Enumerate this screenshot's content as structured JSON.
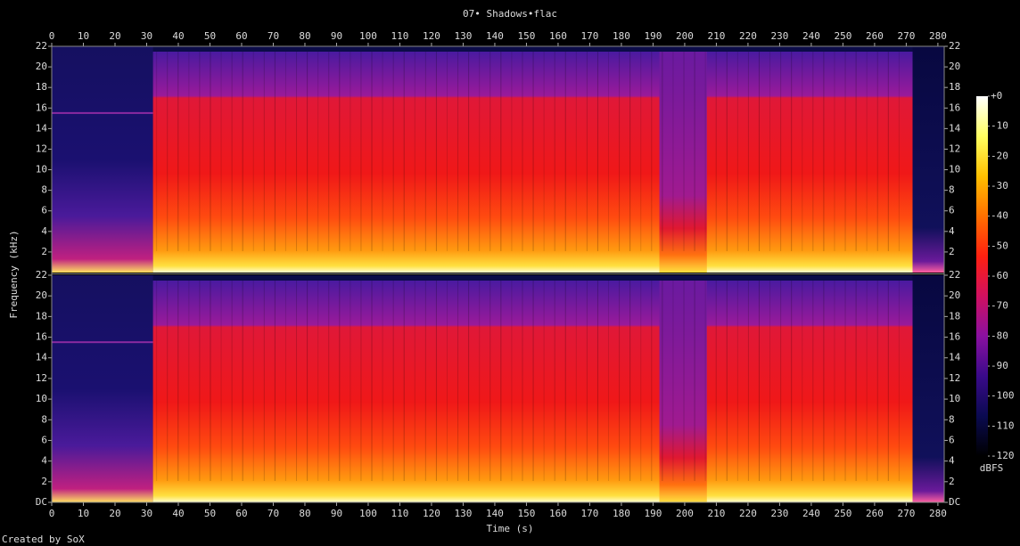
{
  "chart_data": {
    "type": "spectrogram",
    "title": "07• Shadows•flac",
    "xlabel": "Time (s)",
    "ylabel": "Frequency (kHz)",
    "credit": "Created by SoX",
    "xlim": [
      0,
      282
    ],
    "xticks": [
      0,
      10,
      20,
      30,
      40,
      50,
      60,
      70,
      80,
      90,
      100,
      110,
      120,
      130,
      140,
      150,
      160,
      170,
      180,
      190,
      200,
      210,
      220,
      230,
      240,
      250,
      260,
      270,
      280
    ],
    "ylim": [
      0,
      22
    ],
    "yticks": [
      {
        "value": 0,
        "label": "DC"
      },
      2,
      4,
      6,
      8,
      10,
      12,
      14,
      16,
      18,
      20,
      22
    ],
    "colorbar": {
      "label": "dBFS",
      "lim": [
        -120,
        0
      ],
      "ticks": [
        {
          "value": 0,
          "label": "+0"
        },
        -10,
        -20,
        -30,
        -40,
        -50,
        -60,
        -70,
        -80,
        -90,
        -100,
        -110,
        -120
      ],
      "colors": [
        "#000000",
        "#0a0a50",
        "#3a0a8a",
        "#8a10a0",
        "#d01060",
        "#ff2010",
        "#ff7000",
        "#ffc000",
        "#ffff60",
        "#ffffff"
      ]
    }
  }
}
